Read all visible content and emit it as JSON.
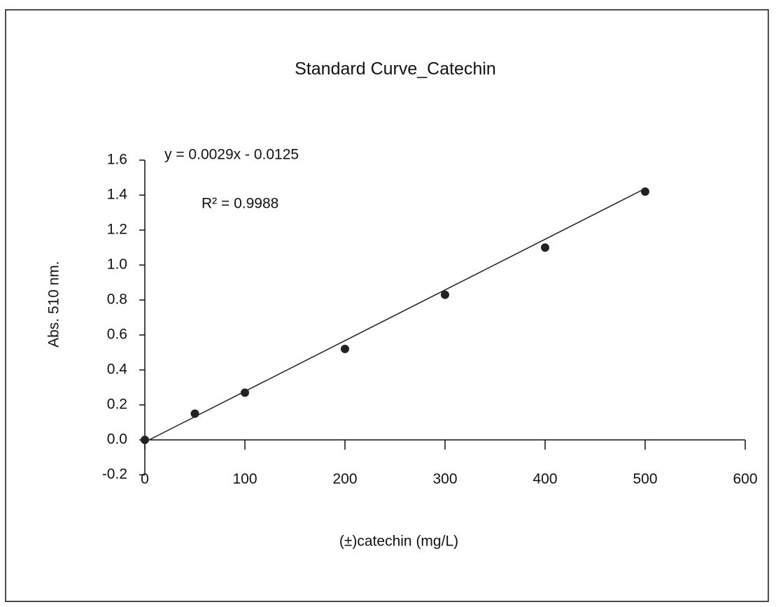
{
  "chart_data": {
    "type": "scatter",
    "title": "Standard Curve_Catechin",
    "x_label": "(±)catechin (mg/L)",
    "y_label": "Abs. 510 nm.",
    "equation": "y = 0.0029x - 0.0125",
    "r_squared": "R² = 0.9988",
    "x": [
      0,
      50,
      100,
      200,
      300,
      400,
      500
    ],
    "values": [
      0.0,
      0.15,
      0.27,
      0.52,
      0.83,
      1.1,
      1.42
    ],
    "color": "#222222",
    "trendline": {
      "slope": 0.0029,
      "intercept": -0.0125
    },
    "xlim": [
      0,
      600
    ],
    "xticks": [
      0,
      100,
      200,
      300,
      400,
      500,
      600
    ],
    "ylim": [
      -0.2,
      1.6
    ],
    "yticks": [
      -0.2,
      {
        "value": 0,
        "label": "0.0"
      },
      0.2,
      0.4,
      0.6,
      0.8,
      {
        "value": 1,
        "label": "1.0"
      },
      1.2,
      1.4,
      1.6
    ]
  }
}
